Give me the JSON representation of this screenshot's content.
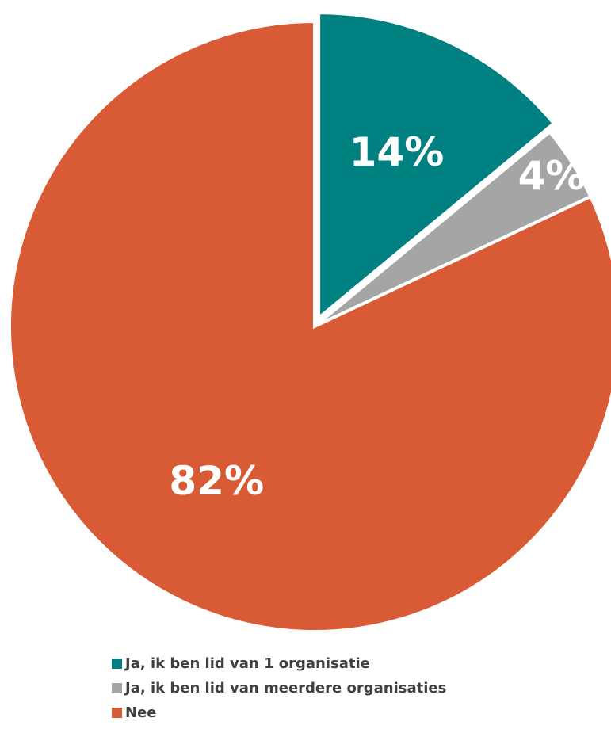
{
  "chart_data": {
    "type": "pie",
    "title": "",
    "slices": [
      {
        "label": "Ja, ik ben lid van 1 organisatie",
        "value": 14,
        "display": "14%",
        "color": "#008080"
      },
      {
        "label": "Ja, ik ben lid van meerdere organisaties",
        "value": 4,
        "display": "4%",
        "color": "#A5A5A5"
      },
      {
        "label": "Nee",
        "value": 82,
        "display": "82%",
        "color": "#D95B36"
      }
    ],
    "exploded_slice": "Ja, ik ben lid van 1 organisatie",
    "start_angle_deg": 0,
    "direction": "clockwise",
    "legend_position": "bottom",
    "data_label_color": "#ffffff"
  }
}
